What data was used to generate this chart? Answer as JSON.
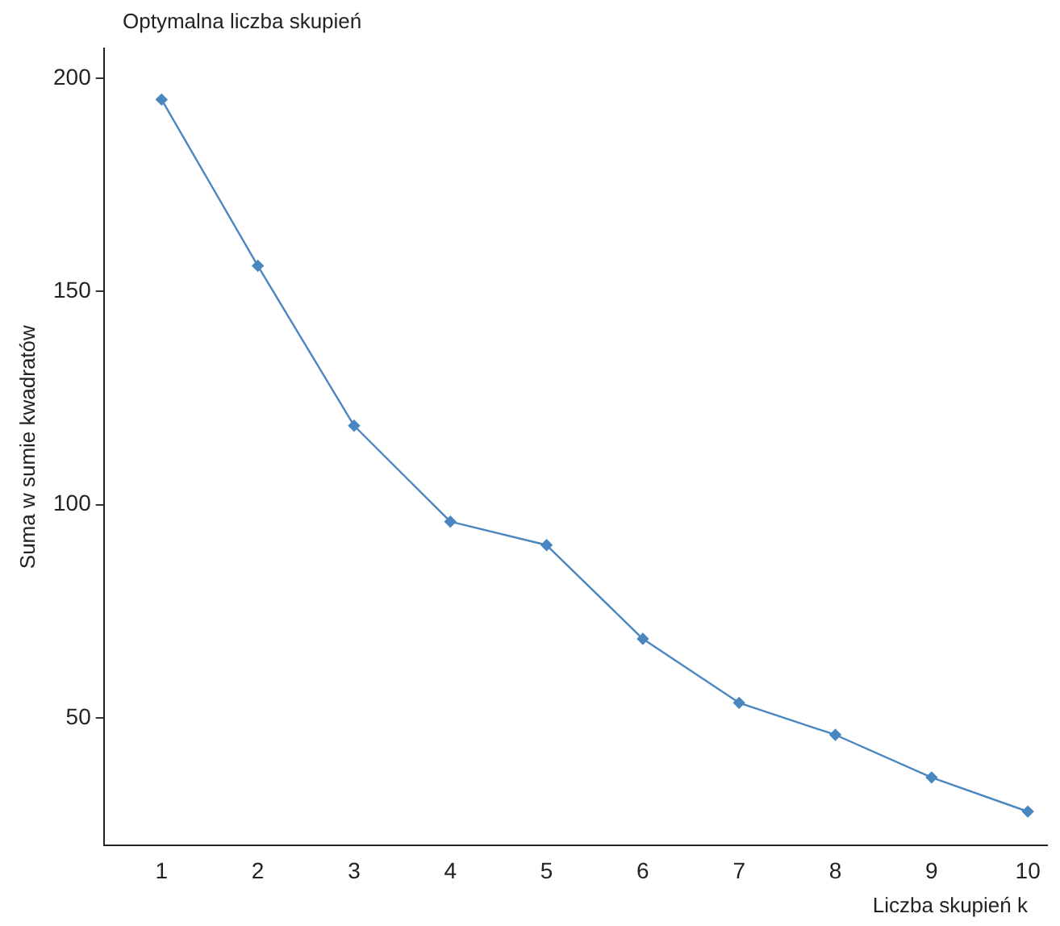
{
  "chart_data": {
    "type": "line",
    "title": "Optymalna liczba skupień",
    "xlabel": "Liczba skupień k",
    "ylabel": "Suma w sumie kwadratów",
    "x": [
      1,
      2,
      3,
      4,
      5,
      6,
      7,
      8,
      9,
      10
    ],
    "series": [
      {
        "color": "#4a86c0",
        "values": [
          195,
          156,
          118.5,
          96,
          90.5,
          68.5,
          53.5,
          46,
          36,
          28
        ]
      }
    ],
    "xlim": [
      0.4,
      10.2
    ],
    "xticks": [
      1,
      2,
      3,
      4,
      5,
      6,
      7,
      8,
      9,
      10
    ],
    "ylim": [
      20,
      207
    ],
    "yticks": [
      50,
      100,
      150,
      200
    ],
    "grid": false,
    "legend": false,
    "marker": "diamond",
    "line_style": "solid"
  }
}
